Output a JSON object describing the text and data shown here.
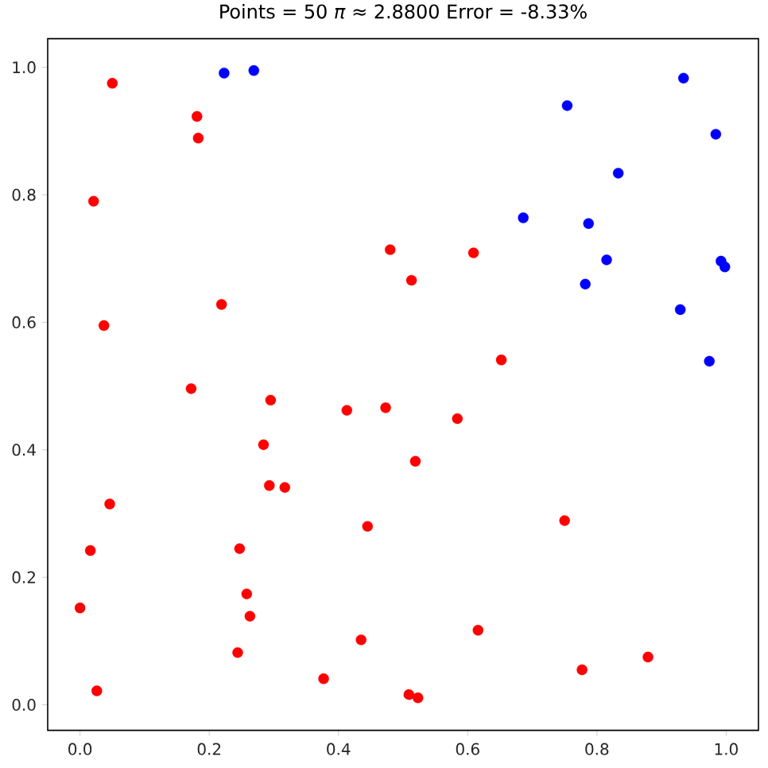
{
  "chart_data": {
    "type": "scatter",
    "title": "Points = 50   *π* ≈ 2.8800   Error = -8.33%",
    "xlim": [
      -0.05,
      1.05
    ],
    "ylim": [
      -0.04,
      1.045
    ],
    "xticks": [
      {
        "value": 0,
        "label": "0.0"
      },
      0.2,
      0.4,
      0.6,
      0.8,
      {
        "value": 1,
        "label": "1.0"
      }
    ],
    "yticks": [
      {
        "value": 0,
        "label": "0.0"
      },
      0.2,
      0.4,
      0.6,
      0.8,
      {
        "value": 1,
        "label": "1.0"
      }
    ],
    "marker": "circle",
    "series": [
      {
        "color": "#ff0000",
        "x": [
          0.05,
          0.181,
          0.183,
          0.021,
          0.48,
          0.513,
          0.219,
          0.037,
          0.609,
          0.652,
          0.172,
          0.295,
          0.413,
          0.473,
          0.284,
          0.519,
          0.293,
          0.317,
          0.046,
          0.445,
          0.016,
          0.247,
          0.258,
          0.0,
          0.263,
          0.435,
          0.244,
          0.377,
          0.026,
          0.509,
          0.523,
          0.584,
          0.75,
          0.616,
          0.879,
          0.777
        ],
        "values": [
          0.975,
          0.923,
          0.889,
          0.79,
          0.714,
          0.666,
          0.628,
          0.595,
          0.709,
          0.541,
          0.496,
          0.478,
          0.462,
          0.466,
          0.408,
          0.382,
          0.344,
          0.341,
          0.315,
          0.28,
          0.242,
          0.245,
          0.174,
          0.152,
          0.139,
          0.102,
          0.082,
          0.041,
          0.022,
          0.016,
          0.011,
          0.449,
          0.289,
          0.117,
          0.075,
          0.055
        ]
      },
      {
        "color": "#0000ff",
        "x": [
          0.223,
          0.269,
          0.934,
          0.754,
          0.984,
          0.833,
          0.686,
          0.787,
          0.815,
          0.992,
          0.998,
          0.782,
          0.929,
          0.974
        ],
        "values": [
          0.991,
          0.995,
          0.983,
          0.94,
          0.895,
          0.834,
          0.764,
          0.755,
          0.698,
          0.696,
          0.687,
          0.66,
          0.62,
          0.539
        ]
      }
    ]
  }
}
